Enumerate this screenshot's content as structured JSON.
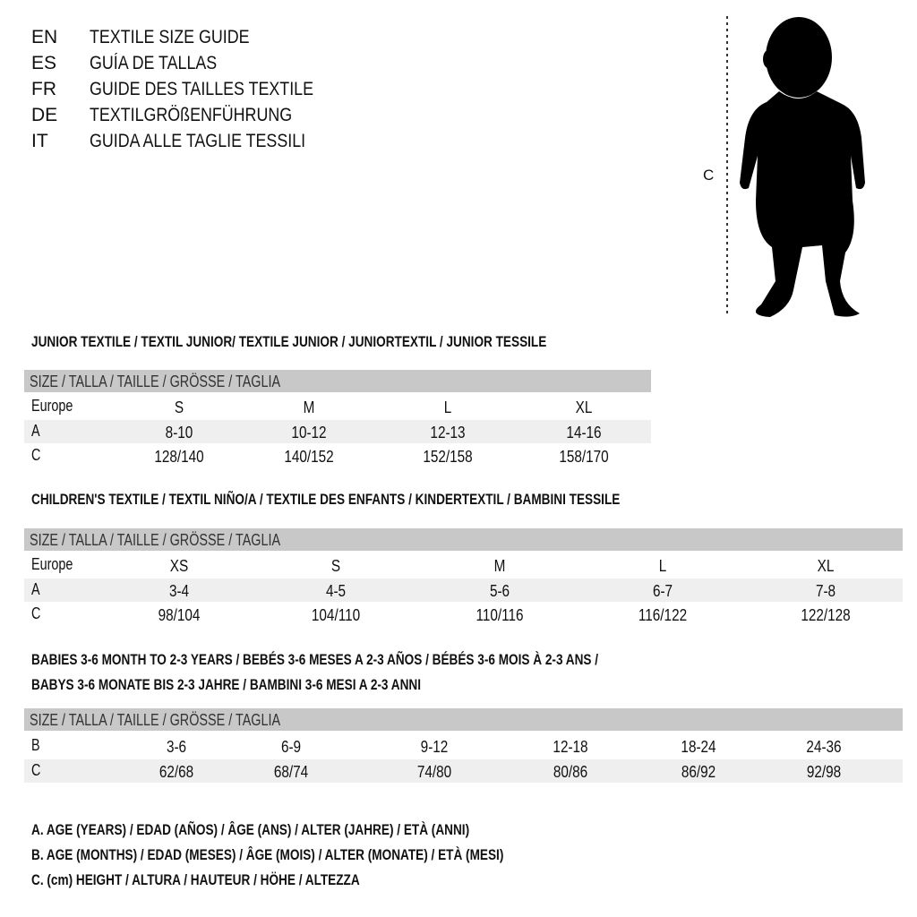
{
  "guide_titles": [
    {
      "code": "EN",
      "title": "TEXTILE SIZE GUIDE"
    },
    {
      "code": "ES",
      "title": "GUÍA DE TALLAS"
    },
    {
      "code": "FR",
      "title": "GUIDE DES TAILLES TEXTILE"
    },
    {
      "code": "DE",
      "title": "TEXTILGRÖßENFÜHRUNG"
    },
    {
      "code": "IT",
      "title": "GUIDA ALLE TAGLIE TESSILI"
    }
  ],
  "figure": {
    "measure_label": "C",
    "icon": "child-silhouette-icon"
  },
  "size_header": "SIZE / TALLA / TAILLE / GRÖSSE / TAGLIA",
  "junior": {
    "title": "JUNIOR TEXTILE / TEXTIL JUNIOR/ TEXTILE JUNIOR / JUNIORTEXTIL / JUNIOR TESSILE",
    "rows": [
      {
        "label": "Europe",
        "cells": [
          "S",
          "M",
          "L",
          "XL"
        ]
      },
      {
        "label": "A",
        "cells": [
          "8-10",
          "10-12",
          "12-13",
          "14-16"
        ]
      },
      {
        "label": "C",
        "cells": [
          "128/140",
          "140/152",
          "152/158",
          "158/170"
        ]
      }
    ]
  },
  "children": {
    "title": "CHILDREN'S TEXTILE / TEXTIL NIÑO/A / TEXTILE DES ENFANTS / KINDERTEXTIL / BAMBINI TESSILE",
    "rows": [
      {
        "label": "Europe",
        "cells": [
          "XS",
          "S",
          "M",
          "L",
          "XL"
        ]
      },
      {
        "label": "A",
        "cells": [
          "3-4",
          "4-5",
          "5-6",
          "6-7",
          "7-8"
        ]
      },
      {
        "label": "C",
        "cells": [
          "98/104",
          "104/110",
          "110/116",
          "116/122",
          "122/128"
        ]
      }
    ]
  },
  "babies": {
    "title_line1": "BABIES 3-6 MONTH TO 2-3 YEARS / BEBÉS 3-6 MESES A 2-3 AÑOS / BÉBÉS 3-6 MOIS À 2-3 ANS /",
    "title_line2": "BABYS 3-6 MONATE BIS 2-3 JAHRE / BAMBINI 3-6 MESI A 2-3 ANNI",
    "rows": [
      {
        "label": "B",
        "cells": [
          "3-6",
          "6-9",
          "9-12",
          "12-18",
          "18-24",
          "24-36"
        ]
      },
      {
        "label": "C",
        "cells": [
          "62/68",
          "68/74",
          "74/80",
          "80/86",
          "86/92",
          "92/98"
        ]
      }
    ]
  },
  "legend": [
    "A. AGE (YEARS) / EDAD (AÑOS) / ÂGE (ANS) / ALTER (JAHRE) / ETÀ (ANNI)",
    "B. AGE (MONTHS) / EDAD (MESES) / ÂGE (MOIS) / ALTER (MONATE) / ETÀ (MESI)",
    "C. (cm) HEIGHT / ALTURA / HAUTEUR / HÖHE / ALTEZZA"
  ],
  "colors": {
    "header_bar": "#c8c8c8",
    "alt_row": "#efefef",
    "text": "#111111"
  }
}
